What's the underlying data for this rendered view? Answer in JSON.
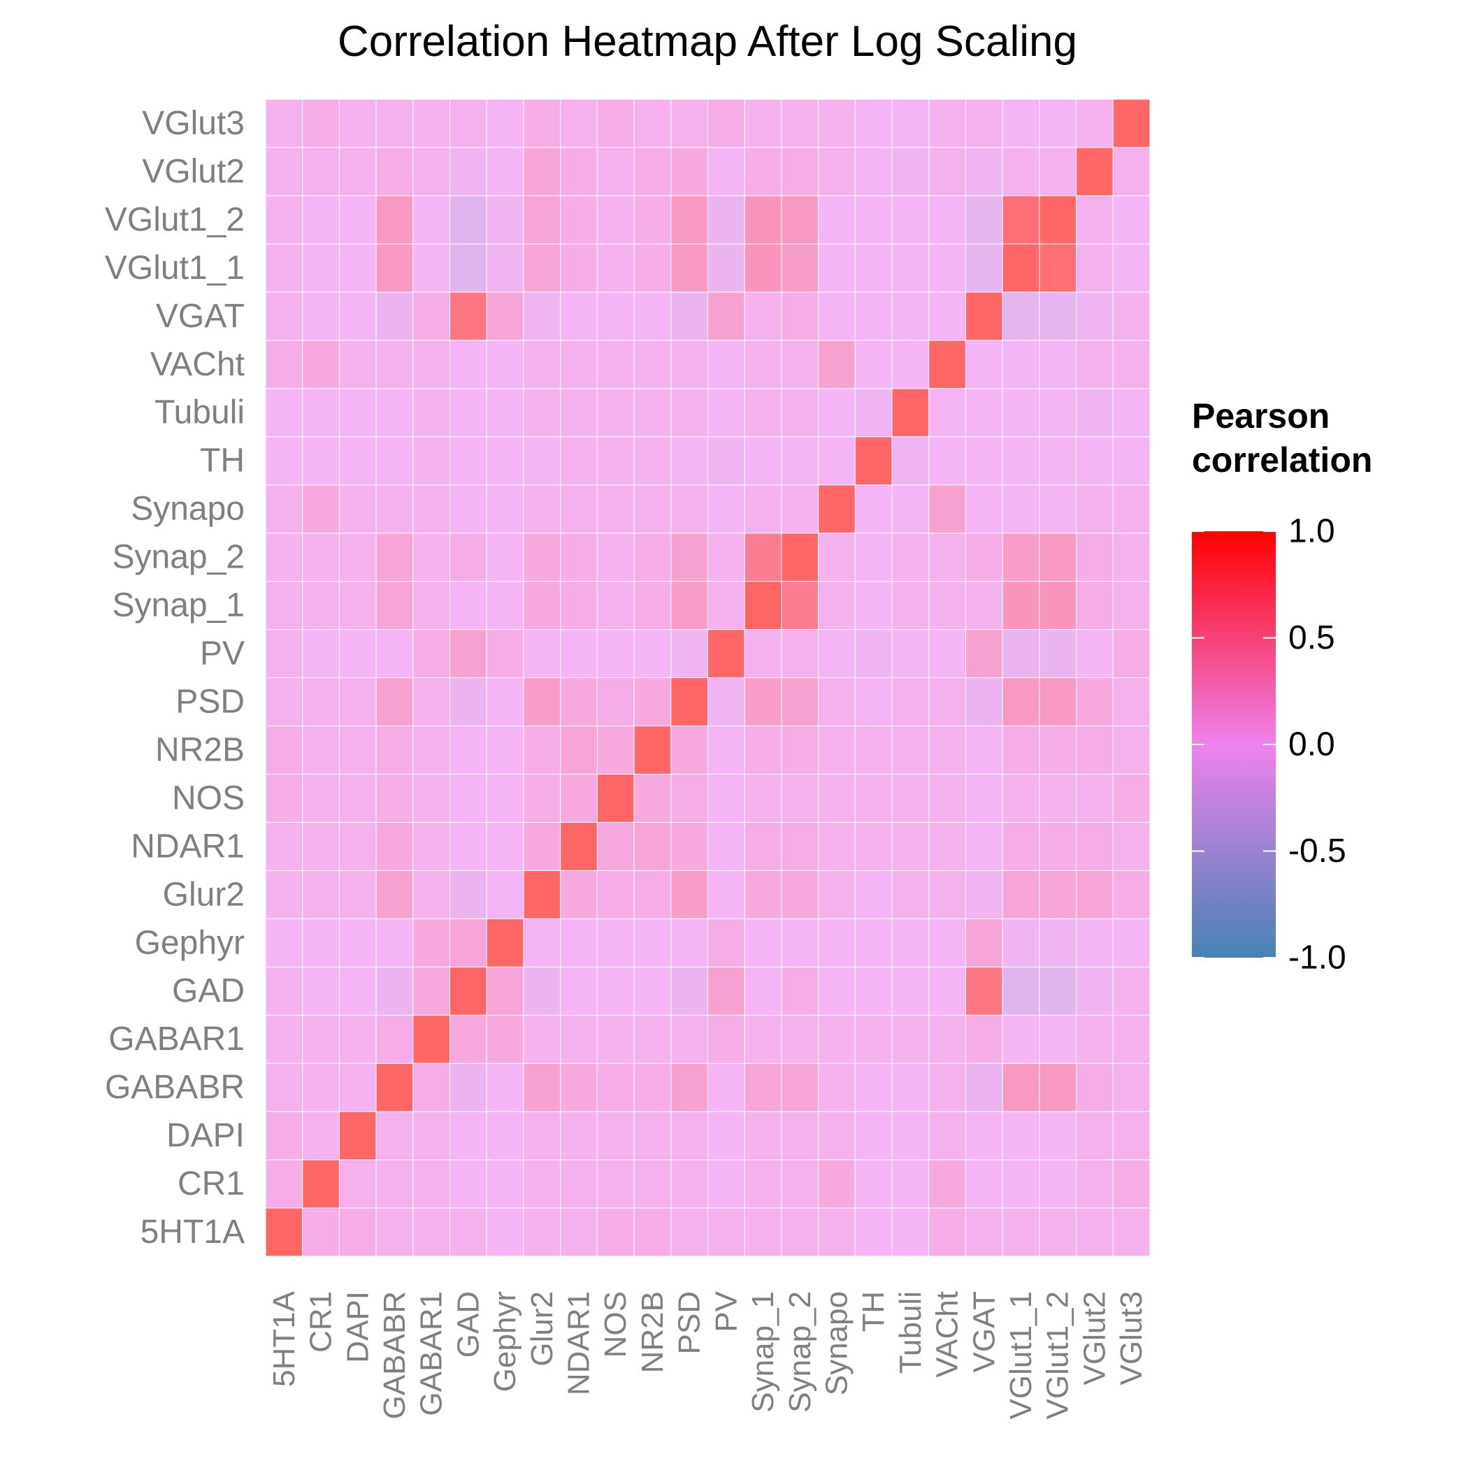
{
  "chart_data": {
    "type": "heatmap",
    "title": "Correlation Heatmap After Log Scaling",
    "x_categories": [
      "5HT1A",
      "CR1",
      "DAPI",
      "GABABR",
      "GABAR1",
      "GAD",
      "Gephyr",
      "Glur2",
      "NDAR1",
      "NOS",
      "NR2B",
      "PSD",
      "PV",
      "Synap_1",
      "Synap_2",
      "Synapo",
      "TH",
      "Tubuli",
      "VACht",
      "VGAT",
      "VGlut1_1",
      "VGlut1_2",
      "VGlut2",
      "VGlut3"
    ],
    "y_categories": [
      "5HT1A",
      "CR1",
      "DAPI",
      "GABABR",
      "GABAR1",
      "GAD",
      "Gephyr",
      "Glur2",
      "NDAR1",
      "NOS",
      "NR2B",
      "PSD",
      "PV",
      "Synap_1",
      "Synap_2",
      "Synapo",
      "TH",
      "Tubuli",
      "VACht",
      "VGAT",
      "VGlut1_1",
      "VGlut1_2",
      "VGlut2",
      "VGlut3"
    ],
    "values": [
      [
        1.0,
        0.1,
        0.1,
        0.05,
        0.05,
        0.05,
        0.0,
        0.05,
        0.05,
        0.1,
        0.1,
        0.05,
        0.05,
        0.05,
        0.05,
        0.05,
        0.0,
        0.0,
        0.1,
        0.05,
        0.05,
        0.05,
        0.05,
        0.05
      ],
      [
        0.1,
        1.0,
        0.05,
        0.05,
        0.05,
        0.0,
        0.0,
        0.05,
        0.05,
        0.05,
        0.05,
        0.05,
        0.0,
        0.05,
        0.05,
        0.15,
        0.0,
        0.0,
        0.15,
        0.0,
        0.0,
        0.0,
        0.05,
        0.1
      ],
      [
        0.1,
        0.05,
        1.0,
        0.05,
        0.05,
        0.0,
        0.0,
        0.05,
        0.05,
        0.05,
        0.05,
        0.05,
        0.0,
        0.05,
        0.05,
        0.05,
        0.0,
        0.0,
        0.05,
        0.0,
        0.0,
        0.0,
        0.05,
        0.05
      ],
      [
        0.05,
        0.05,
        0.05,
        1.0,
        0.1,
        -0.1,
        0.0,
        0.25,
        0.15,
        0.1,
        0.1,
        0.25,
        0.0,
        0.2,
        0.2,
        0.05,
        0.0,
        0.0,
        0.05,
        -0.1,
        0.35,
        0.35,
        0.1,
        0.05
      ],
      [
        0.05,
        0.05,
        0.05,
        0.1,
        1.0,
        0.15,
        0.15,
        0.05,
        0.05,
        0.05,
        0.05,
        0.05,
        0.1,
        0.05,
        0.05,
        0.05,
        0.05,
        0.05,
        0.05,
        0.1,
        0.0,
        0.0,
        0.05,
        0.05
      ],
      [
        0.05,
        0.0,
        0.0,
        -0.1,
        0.15,
        1.0,
        0.2,
        -0.1,
        0.0,
        0.0,
        0.0,
        -0.1,
        0.25,
        0.0,
        0.1,
        0.0,
        0.0,
        0.0,
        0.0,
        0.8,
        -0.2,
        -0.2,
        -0.05,
        0.05
      ],
      [
        0.0,
        0.0,
        0.0,
        0.0,
        0.15,
        0.2,
        1.0,
        0.0,
        0.0,
        0.0,
        0.0,
        0.0,
        0.1,
        0.0,
        0.0,
        0.0,
        0.0,
        0.0,
        0.0,
        0.2,
        -0.05,
        -0.05,
        0.0,
        0.0
      ],
      [
        0.05,
        0.05,
        0.05,
        0.25,
        0.05,
        -0.1,
        0.0,
        1.0,
        0.15,
        0.1,
        0.1,
        0.3,
        0.0,
        0.15,
        0.15,
        0.05,
        0.0,
        0.05,
        0.05,
        -0.05,
        0.2,
        0.2,
        0.2,
        0.1
      ],
      [
        0.05,
        0.05,
        0.05,
        0.15,
        0.05,
        0.0,
        0.0,
        0.15,
        1.0,
        0.15,
        0.2,
        0.15,
        0.0,
        0.1,
        0.1,
        0.05,
        0.05,
        0.05,
        0.05,
        0.0,
        0.1,
        0.1,
        0.1,
        0.05
      ],
      [
        0.1,
        0.05,
        0.05,
        0.1,
        0.05,
        0.0,
        0.0,
        0.1,
        0.15,
        1.0,
        0.15,
        0.1,
        0.0,
        0.05,
        0.05,
        0.05,
        0.05,
        0.05,
        0.05,
        0.0,
        0.05,
        0.05,
        0.05,
        0.1
      ],
      [
        0.1,
        0.05,
        0.05,
        0.1,
        0.05,
        0.0,
        0.0,
        0.1,
        0.2,
        0.15,
        1.0,
        0.15,
        0.0,
        0.1,
        0.1,
        0.05,
        0.05,
        0.05,
        0.05,
        0.0,
        0.1,
        0.1,
        0.1,
        0.05
      ],
      [
        0.05,
        0.05,
        0.05,
        0.25,
        0.05,
        -0.1,
        0.0,
        0.3,
        0.15,
        0.1,
        0.15,
        1.0,
        -0.05,
        0.3,
        0.25,
        0.05,
        0.0,
        0.05,
        0.05,
        -0.1,
        0.35,
        0.35,
        0.15,
        0.05
      ],
      [
        0.05,
        0.0,
        0.0,
        0.0,
        0.1,
        0.25,
        0.1,
        0.0,
        0.0,
        0.0,
        0.0,
        -0.05,
        1.0,
        0.05,
        0.05,
        0.0,
        -0.05,
        0.0,
        0.0,
        0.25,
        -0.1,
        -0.1,
        0.0,
        0.1
      ],
      [
        0.05,
        0.05,
        0.05,
        0.2,
        0.05,
        0.0,
        0.0,
        0.15,
        0.1,
        0.05,
        0.1,
        0.3,
        0.05,
        1.0,
        0.7,
        0.05,
        0.0,
        0.05,
        0.05,
        0.05,
        0.4,
        0.4,
        0.1,
        0.05
      ],
      [
        0.05,
        0.05,
        0.05,
        0.2,
        0.05,
        0.1,
        0.0,
        0.15,
        0.1,
        0.05,
        0.1,
        0.25,
        0.05,
        0.7,
        1.0,
        0.05,
        0.0,
        0.05,
        0.05,
        0.1,
        0.3,
        0.35,
        0.1,
        0.05
      ],
      [
        0.05,
        0.15,
        0.05,
        0.05,
        0.05,
        0.0,
        0.0,
        0.05,
        0.05,
        0.05,
        0.05,
        0.05,
        0.0,
        0.05,
        0.05,
        1.0,
        0.0,
        0.0,
        0.25,
        0.0,
        0.0,
        0.0,
        0.05,
        0.05
      ],
      [
        0.0,
        0.0,
        0.0,
        0.0,
        0.05,
        0.0,
        0.0,
        0.0,
        0.05,
        0.05,
        0.05,
        0.0,
        -0.05,
        0.0,
        0.0,
        0.0,
        1.0,
        -0.05,
        0.0,
        0.0,
        0.0,
        0.0,
        0.0,
        0.0
      ],
      [
        0.0,
        0.0,
        0.0,
        0.0,
        0.05,
        0.0,
        0.0,
        0.05,
        0.05,
        0.05,
        0.05,
        0.05,
        0.0,
        0.05,
        0.05,
        0.0,
        -0.05,
        1.0,
        0.0,
        0.0,
        0.0,
        0.0,
        -0.05,
        0.0
      ],
      [
        0.1,
        0.15,
        0.05,
        0.05,
        0.05,
        0.0,
        0.0,
        0.05,
        0.05,
        0.05,
        0.05,
        0.05,
        0.0,
        0.05,
        0.05,
        0.25,
        0.0,
        0.0,
        1.0,
        0.0,
        0.0,
        0.0,
        0.05,
        0.05
      ],
      [
        0.05,
        0.0,
        0.0,
        -0.1,
        0.1,
        0.8,
        0.2,
        -0.05,
        0.0,
        0.0,
        0.0,
        -0.1,
        0.25,
        0.05,
        0.1,
        0.0,
        0.0,
        0.0,
        0.0,
        1.0,
        -0.15,
        -0.15,
        -0.05,
        0.05
      ],
      [
        0.05,
        0.0,
        0.0,
        0.35,
        0.0,
        -0.2,
        -0.05,
        0.2,
        0.1,
        0.05,
        0.1,
        0.35,
        -0.1,
        0.4,
        0.3,
        0.0,
        0.0,
        0.0,
        0.0,
        -0.15,
        1.0,
        0.9,
        0.05,
        0.0
      ],
      [
        0.05,
        0.0,
        0.0,
        0.35,
        0.0,
        -0.2,
        -0.05,
        0.2,
        0.1,
        0.05,
        0.1,
        0.35,
        -0.1,
        0.4,
        0.35,
        0.0,
        0.0,
        0.0,
        0.0,
        -0.15,
        0.9,
        1.0,
        0.05,
        0.0
      ],
      [
        0.05,
        0.05,
        0.05,
        0.1,
        0.05,
        -0.05,
        0.0,
        0.2,
        0.1,
        0.05,
        0.1,
        0.15,
        0.0,
        0.1,
        0.1,
        0.05,
        0.0,
        -0.05,
        0.05,
        -0.05,
        0.05,
        0.05,
        1.0,
        0.05
      ],
      [
        0.05,
        0.1,
        0.05,
        0.05,
        0.05,
        0.05,
        0.0,
        0.1,
        0.05,
        0.1,
        0.05,
        0.05,
        0.1,
        0.05,
        0.05,
        0.05,
        0.0,
        0.0,
        0.05,
        0.05,
        0.0,
        0.0,
        0.05,
        1.0
      ]
    ],
    "legend": {
      "title_lines": [
        "Pearson",
        "correlation"
      ],
      "ticks": [
        "1.0",
        "0.5",
        "0.0",
        "-0.5",
        "-1.0"
      ],
      "tick_values": [
        1.0,
        0.5,
        0.0,
        -0.5,
        -1.0
      ],
      "range": [
        -1.0,
        1.0
      ],
      "colors": {
        "low": "#4682B4",
        "mid": "#EE82EE",
        "high": "#FF0000"
      },
      "position": "right"
    },
    "grid": true,
    "xlabel": "",
    "ylabel": ""
  }
}
